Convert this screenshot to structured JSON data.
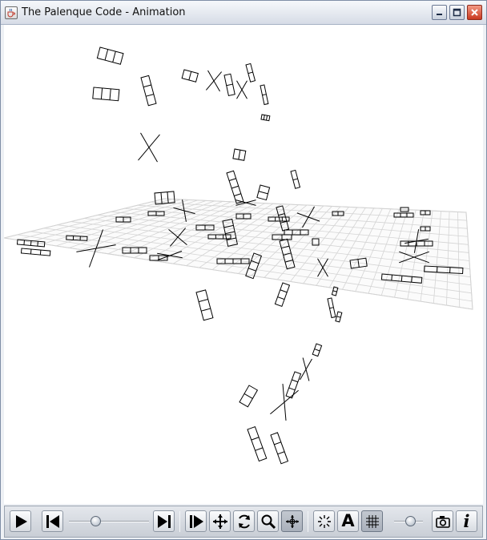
{
  "window": {
    "title": "The Palenque Code - Animation",
    "app_icon": "java-cup-icon",
    "controls": [
      "minimize-icon",
      "maximize-icon",
      "close-icon"
    ]
  },
  "viewport": {
    "description_icon": "3d-scene",
    "grid_visible": true
  },
  "toolbar": {
    "buttons": [
      {
        "name": "play-button",
        "icon": "play-icon",
        "active": false
      },
      {
        "name": "rewind-button",
        "icon": "skip-to-start-icon",
        "active": false
      },
      {
        "name": "end-button",
        "icon": "skip-to-end-icon",
        "active": false
      },
      {
        "name": "step-forward-button",
        "icon": "step-forward-icon",
        "active": false
      },
      {
        "name": "move-button",
        "icon": "move-icon",
        "active": false
      },
      {
        "name": "rotate-button",
        "icon": "rotate-icon",
        "active": false
      },
      {
        "name": "zoom-button",
        "icon": "zoom-icon",
        "active": false
      },
      {
        "name": "pan-button",
        "icon": "pan-icon",
        "active": true
      },
      {
        "name": "burst-button",
        "icon": "burst-icon",
        "active": false
      },
      {
        "name": "labels-button",
        "icon": "letter-a-icon",
        "active": false,
        "label": "A"
      },
      {
        "name": "grid-button",
        "icon": "grid-icon",
        "active": true
      },
      {
        "name": "snapshot-button",
        "icon": "camera-icon",
        "active": false
      },
      {
        "name": "info-button",
        "icon": "info-icon",
        "active": false,
        "label": "i"
      }
    ],
    "timeline_position": 0.33,
    "speed_position": 0.55
  }
}
